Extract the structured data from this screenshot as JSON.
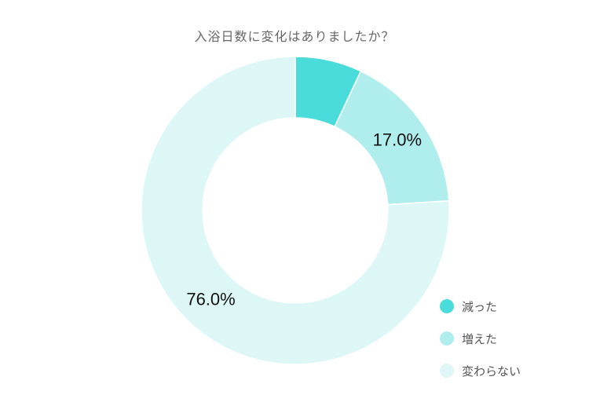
{
  "chart_data": {
    "type": "pie",
    "title": "入浴日数に変化はありましたか？",
    "donut": true,
    "categories": [
      "減った",
      "増えた",
      "変わらない"
    ],
    "values": [
      7.0,
      17.0,
      76.0
    ],
    "value_labels": [
      "",
      "17.0%",
      "76.0%"
    ],
    "colors": [
      "#4adbdb",
      "#b0eeee",
      "#dcf7f6"
    ],
    "legend_position": "bottom-right"
  }
}
